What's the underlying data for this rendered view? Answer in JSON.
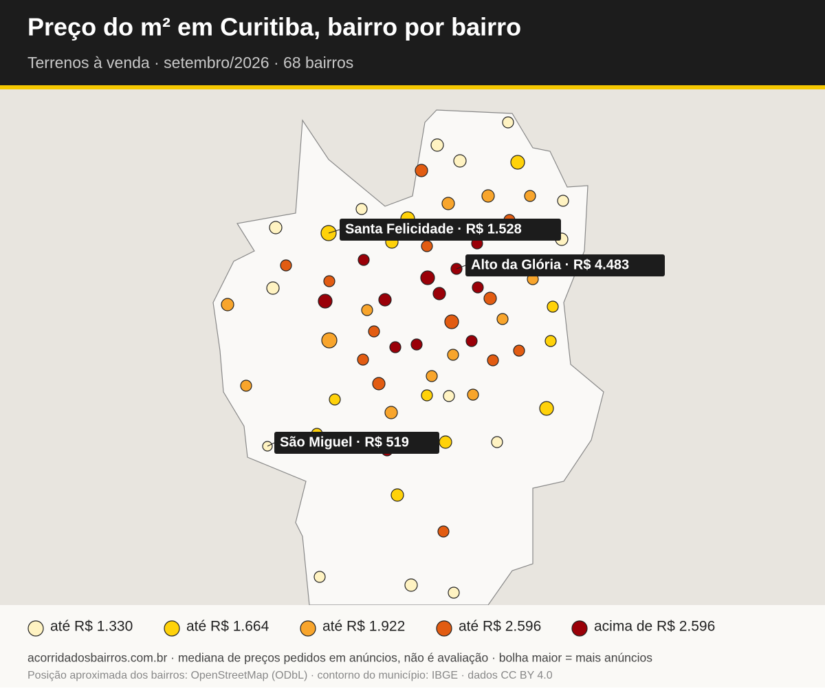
{
  "header": {
    "title": "Preço do m² em Curitiba, bairro por bairro",
    "subtitle": "Terrenos à venda · setembro/2026 · 68 bairros"
  },
  "callouts": [
    {
      "label": "Santa Felicidade · R$ 1.528"
    },
    {
      "label": "Alto da Glória · R$ 4.483"
    },
    {
      "label": "São Miguel · R$ 519"
    }
  ],
  "legend": [
    {
      "label": "até R$ 1.330",
      "color": "#fff3c2"
    },
    {
      "label": "até R$ 1.664",
      "color": "#ffd20a"
    },
    {
      "label": "até R$ 1.922",
      "color": "#f8a52c"
    },
    {
      "label": "até R$ 2.596",
      "color": "#e25c12"
    },
    {
      "label": "acima de R$ 2.596",
      "color": "#9a0008"
    }
  ],
  "footer": {
    "line1": "acorridadosbairros.com.br · mediana de preços pedidos em anúncios, não é avaliação · bolha maior = mais anúncios",
    "line2": "Posição aproximada dos bairros: OpenStreetMap (ODbL) · contorno do município: IBGE · dados CC BY 4.0"
  }
}
